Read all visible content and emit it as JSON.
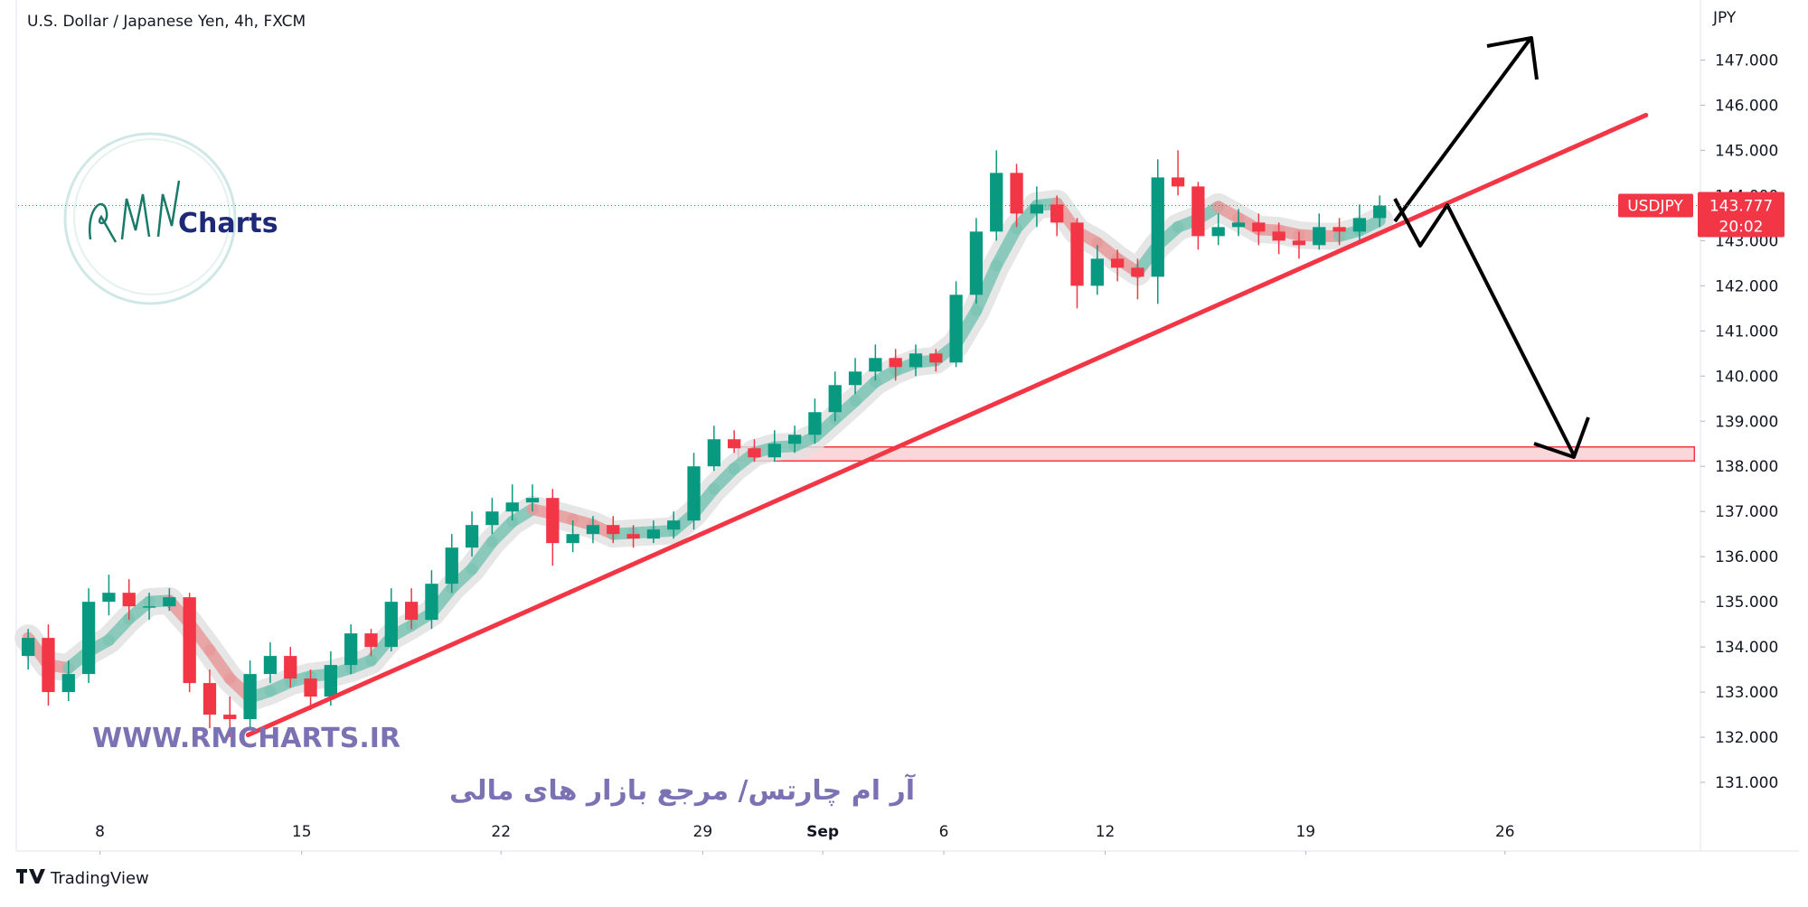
{
  "title": "U.S. Dollar / Japanese Yen, 4h, FXCM",
  "watermark": "WWW.RMCHARTS.IR",
  "tagline": "آر ام چارتس/ مرجع بازار های مالی",
  "logo_text": "Charts",
  "footer": "TradingView",
  "chart_data": {
    "type": "candlestick",
    "currency": "JPY",
    "symbol": "USDJPY",
    "last_price": 143.777,
    "countdown": "20:02",
    "up_color": "#089981",
    "down_color": "#f23645",
    "ylim": [
      129.48,
      148.33
    ],
    "yticks": [
      {
        "value": 131,
        "label": "131.000"
      },
      {
        "value": 132,
        "label": "132.000"
      },
      {
        "value": 133,
        "label": "133.000"
      },
      {
        "value": 134,
        "label": "134.000"
      },
      {
        "value": 135,
        "label": "135.000"
      },
      {
        "value": 136,
        "label": "136.000"
      },
      {
        "value": 137,
        "label": "137.000"
      },
      {
        "value": 138,
        "label": "138.000"
      },
      {
        "value": 139,
        "label": "139.000"
      },
      {
        "value": 140,
        "label": "140.000"
      },
      {
        "value": 141,
        "label": "141.000"
      },
      {
        "value": 142,
        "label": "142.000"
      },
      {
        "value": 143,
        "label": "143.000"
      },
      {
        "value": 144,
        "label": "144.000"
      },
      {
        "value": 145,
        "label": "145.000"
      },
      {
        "value": 146,
        "label": "146.000"
      },
      {
        "value": 147,
        "label": "147.000"
      }
    ],
    "xlim": [
      -0.5,
      82.9
    ],
    "xticks": [
      {
        "value": 3.56,
        "label": "8"
      },
      {
        "value": 13.56,
        "label": "15"
      },
      {
        "value": 23.44,
        "label": "22"
      },
      {
        "value": 33.44,
        "label": "29"
      },
      {
        "value": 39.39,
        "label": "Sep"
      },
      {
        "value": 45.39,
        "label": "6"
      },
      {
        "value": 53.39,
        "label": "12"
      },
      {
        "value": 63.33,
        "label": "19"
      },
      {
        "value": 73.21,
        "label": "26"
      }
    ],
    "candles": [
      [
        133.8,
        134.4,
        133.5,
        134.2
      ],
      [
        134.2,
        134.5,
        132.7,
        133.0
      ],
      [
        133.0,
        133.7,
        132.8,
        133.4
      ],
      [
        133.4,
        135.3,
        133.2,
        135.0
      ],
      [
        135.0,
        135.6,
        134.7,
        135.2
      ],
      [
        135.2,
        135.5,
        134.6,
        134.9
      ],
      [
        134.9,
        135.2,
        134.6,
        134.9
      ],
      [
        134.9,
        135.3,
        134.8,
        135.1
      ],
      [
        135.1,
        135.2,
        133.0,
        133.2
      ],
      [
        133.2,
        133.5,
        132.2,
        132.5
      ],
      [
        132.5,
        132.9,
        132.0,
        132.4
      ],
      [
        132.4,
        133.7,
        132.2,
        133.4
      ],
      [
        133.4,
        134.1,
        133.2,
        133.8
      ],
      [
        133.8,
        134.0,
        133.1,
        133.3
      ],
      [
        133.3,
        133.5,
        132.6,
        132.9
      ],
      [
        132.9,
        133.9,
        132.7,
        133.6
      ],
      [
        133.6,
        134.5,
        133.4,
        134.3
      ],
      [
        134.3,
        134.4,
        133.8,
        134.0
      ],
      [
        134.0,
        135.3,
        133.9,
        135.0
      ],
      [
        135.0,
        135.3,
        134.4,
        134.6
      ],
      [
        134.6,
        135.7,
        134.4,
        135.4
      ],
      [
        135.4,
        136.5,
        135.2,
        136.2
      ],
      [
        136.2,
        137.0,
        136.0,
        136.7
      ],
      [
        136.7,
        137.3,
        136.5,
        137.0
      ],
      [
        137.0,
        137.6,
        136.8,
        137.2
      ],
      [
        137.2,
        137.6,
        137.0,
        137.3
      ],
      [
        137.3,
        137.5,
        135.8,
        136.3
      ],
      [
        136.3,
        136.8,
        136.1,
        136.5
      ],
      [
        136.5,
        136.9,
        136.3,
        136.7
      ],
      [
        136.7,
        136.9,
        136.3,
        136.5
      ],
      [
        136.5,
        136.7,
        136.2,
        136.4
      ],
      [
        136.4,
        136.8,
        136.3,
        136.6
      ],
      [
        136.6,
        137.0,
        136.4,
        136.8
      ],
      [
        136.8,
        138.3,
        136.6,
        138.0
      ],
      [
        138.0,
        138.9,
        137.9,
        138.6
      ],
      [
        138.6,
        138.8,
        138.3,
        138.4
      ],
      [
        138.4,
        138.6,
        138.1,
        138.2
      ],
      [
        138.2,
        138.8,
        138.1,
        138.5
      ],
      [
        138.5,
        138.9,
        138.3,
        138.7
      ],
      [
        138.7,
        139.5,
        138.5,
        139.2
      ],
      [
        139.2,
        140.1,
        139.0,
        139.8
      ],
      [
        139.8,
        140.4,
        139.6,
        140.1
      ],
      [
        140.1,
        140.7,
        139.9,
        140.4
      ],
      [
        140.4,
        140.6,
        139.9,
        140.2
      ],
      [
        140.2,
        140.7,
        140.0,
        140.5
      ],
      [
        140.5,
        140.6,
        140.1,
        140.3
      ],
      [
        140.3,
        142.1,
        140.2,
        141.8
      ],
      [
        141.8,
        143.5,
        141.6,
        143.2
      ],
      [
        143.2,
        145.0,
        143.0,
        144.5
      ],
      [
        144.5,
        144.7,
        143.3,
        143.6
      ],
      [
        143.6,
        144.2,
        143.3,
        143.8
      ],
      [
        143.8,
        144.0,
        143.1,
        143.4
      ],
      [
        143.4,
        143.5,
        141.5,
        142.0
      ],
      [
        142.0,
        142.9,
        141.8,
        142.6
      ],
      [
        142.6,
        142.8,
        142.1,
        142.4
      ],
      [
        142.4,
        142.6,
        141.7,
        142.2
      ],
      [
        142.2,
        144.8,
        141.6,
        144.4
      ],
      [
        144.4,
        145.0,
        144.0,
        144.2
      ],
      [
        144.2,
        144.3,
        142.8,
        143.1
      ],
      [
        143.1,
        143.6,
        142.9,
        143.3
      ],
      [
        143.3,
        143.7,
        143.1,
        143.4
      ],
      [
        143.4,
        143.6,
        142.9,
        143.2
      ],
      [
        143.2,
        143.4,
        142.7,
        143.0
      ],
      [
        143.0,
        143.2,
        142.6,
        142.9
      ],
      [
        142.9,
        143.6,
        142.8,
        143.3
      ],
      [
        143.3,
        143.5,
        142.9,
        143.2
      ],
      [
        143.2,
        143.8,
        143.0,
        143.5
      ],
      [
        143.5,
        144.0,
        143.3,
        143.777
      ]
    ],
    "trendline": {
      "x": [
        10.9,
        80.2
      ],
      "y": [
        132.05,
        145.78
      ],
      "color": "#f23645"
    },
    "support_zone": {
      "x": [
        35.2,
        82.6
      ],
      "y": [
        138.12,
        138.43
      ],
      "color": "#f23645"
    }
  }
}
